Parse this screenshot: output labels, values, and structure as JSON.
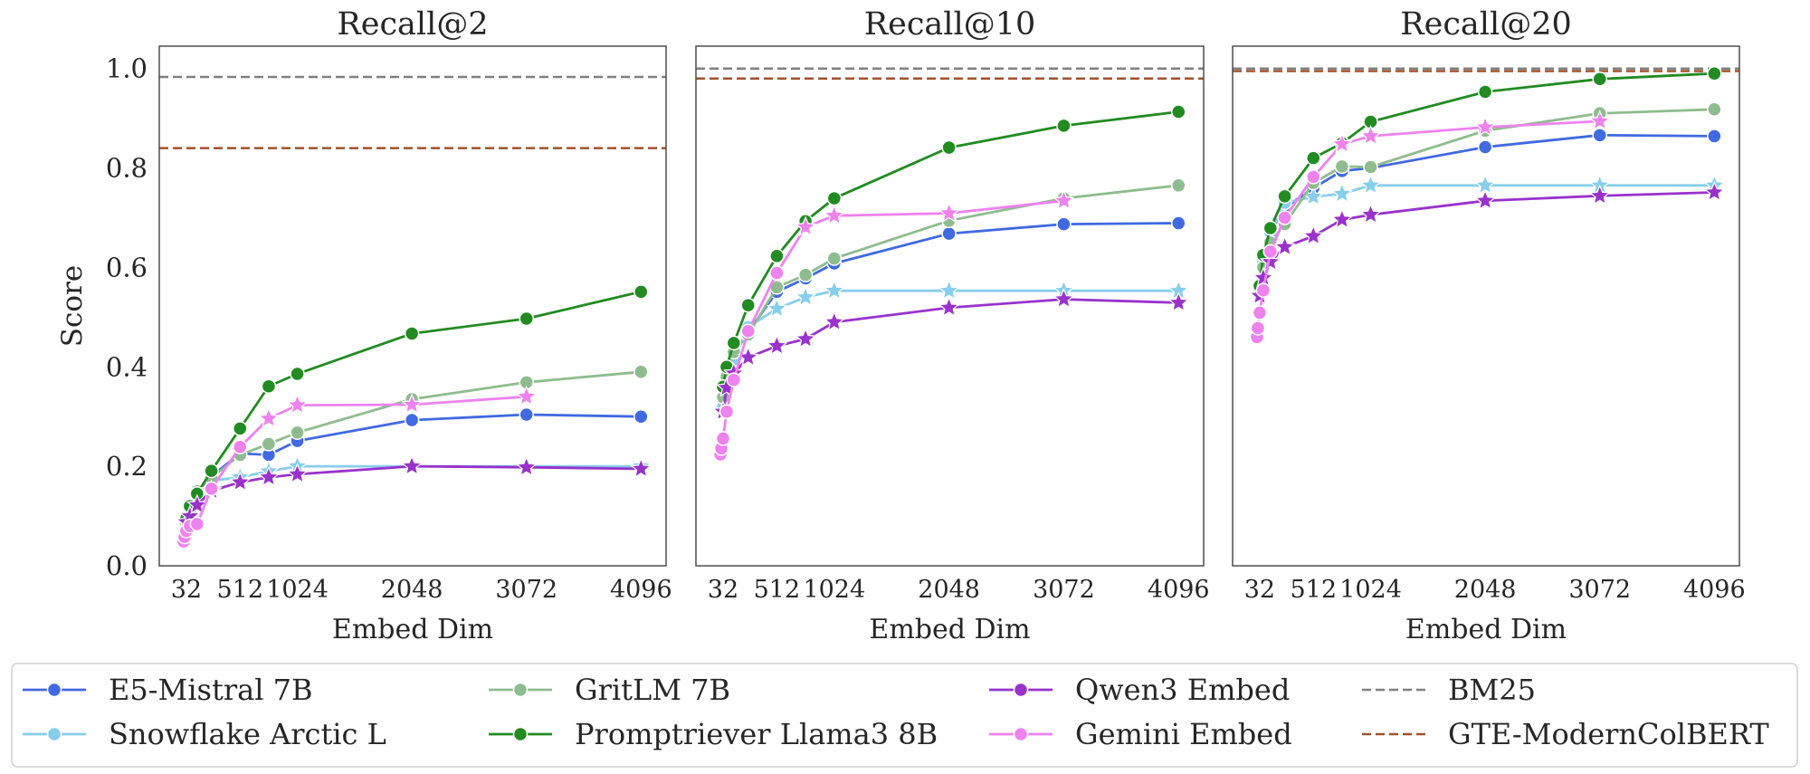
{
  "chart_data": {
    "type": "line",
    "ylabel": "Score",
    "xlabel": "Embed Dim",
    "ylim": [
      0,
      1.045
    ],
    "xlim": [
      -210,
      4320
    ],
    "xticks": [
      32,
      512,
      1024,
      2048,
      3072,
      4096
    ],
    "yticks": [
      "0.0",
      "0.2",
      "0.4",
      "0.6",
      "0.8",
      "1.0"
    ],
    "grid": false,
    "legend_position": "bottom",
    "panels": [
      {
        "title": "Recall@2"
      },
      {
        "title": "Recall@10"
      },
      {
        "title": "Recall@20"
      }
    ],
    "series": [
      {
        "name": "E5-Mistral 7B",
        "color": "#4169e1",
        "x": [
          32,
          64,
          128,
          256,
          512,
          768,
          1024,
          2048,
          3072,
          4096
        ],
        "markers": [
          "circle",
          "circle",
          "circle",
          "circle",
          "circle",
          "circle",
          "circle",
          "circle",
          "circle",
          "circle"
        ],
        "values": [
          [
            0.09,
            0.105,
            0.14,
            0.18,
            0.226,
            0.223,
            0.251,
            0.293,
            0.304,
            0.3
          ],
          [
            0.33,
            0.375,
            0.425,
            0.47,
            0.551,
            0.578,
            0.608,
            0.668,
            0.687,
            0.689
          ],
          [
            0.56,
            0.61,
            0.67,
            0.72,
            0.76,
            0.794,
            0.8,
            0.842,
            0.866,
            0.864
          ]
        ]
      },
      {
        "name": "Snowflake Arctic L",
        "color": "#87ceeb",
        "x": [
          32,
          64,
          128,
          256,
          512,
          768,
          1024,
          2048,
          3072,
          4096
        ],
        "markers": [
          "circle",
          "circle",
          "circle",
          "circle",
          "star",
          "star",
          "star",
          "star",
          "star",
          "star"
        ],
        "values": [
          [
            0.085,
            0.11,
            0.152,
            0.171,
            0.178,
            0.19,
            0.2,
            0.2,
            0.2,
            0.2
          ],
          [
            0.32,
            0.37,
            0.415,
            0.48,
            0.517,
            0.54,
            0.553,
            0.553,
            0.553,
            0.553
          ],
          [
            0.55,
            0.61,
            0.67,
            0.73,
            0.742,
            0.748,
            0.765,
            0.765,
            0.765,
            0.765
          ]
        ]
      },
      {
        "name": "GritLM 7B",
        "color": "#8fbc8f",
        "x": [
          32,
          64,
          128,
          256,
          512,
          768,
          1024,
          2048,
          3072,
          4096
        ],
        "markers": [
          "circle",
          "circle",
          "circle",
          "circle",
          "circle",
          "circle",
          "circle",
          "circle",
          "circle",
          "circle"
        ],
        "values": [
          [
            0.085,
            0.11,
            0.15,
            0.177,
            0.223,
            0.245,
            0.268,
            0.335,
            0.369,
            0.39
          ],
          [
            0.339,
            0.38,
            0.43,
            0.465,
            0.56,
            0.585,
            0.618,
            0.694,
            0.739,
            0.765
          ],
          [
            0.56,
            0.6,
            0.65,
            0.687,
            0.77,
            0.803,
            0.802,
            0.875,
            0.91,
            0.918
          ]
        ]
      },
      {
        "name": "Promptriever Llama3 8B",
        "color": "#228b22",
        "x": [
          32,
          64,
          128,
          256,
          512,
          768,
          1024,
          2048,
          3072,
          4096
        ],
        "markers": [
          "circle",
          "circle",
          "circle",
          "circle",
          "circle",
          "circle",
          "circle",
          "circle",
          "circle",
          "circle"
        ],
        "values": [
          [
            0.095,
            0.12,
            0.145,
            0.191,
            0.276,
            0.361,
            0.386,
            0.467,
            0.497,
            0.551
          ],
          [
            0.36,
            0.4,
            0.448,
            0.524,
            0.623,
            0.693,
            0.739,
            0.841,
            0.885,
            0.913
          ],
          [
            0.563,
            0.625,
            0.679,
            0.743,
            0.82,
            0.85,
            0.893,
            0.953,
            0.979,
            0.99
          ]
        ]
      },
      {
        "name": "Qwen3 Embed",
        "color": "#9932cc",
        "x": [
          32,
          64,
          128,
          256,
          512,
          768,
          1024,
          2048,
          3072,
          4096
        ],
        "markers": [
          "star",
          "star",
          "star",
          "star",
          "star",
          "star",
          "star",
          "star",
          "star",
          "star"
        ],
        "values": [
          [
            0.088,
            0.1,
            0.122,
            0.151,
            0.168,
            0.178,
            0.184,
            0.2,
            0.198,
            0.195
          ],
          [
            0.31,
            0.358,
            0.387,
            0.419,
            0.442,
            0.456,
            0.49,
            0.519,
            0.536,
            0.529
          ],
          [
            0.543,
            0.579,
            0.611,
            0.641,
            0.663,
            0.696,
            0.706,
            0.734,
            0.744,
            0.751
          ]
        ]
      },
      {
        "name": "Gemini Embed",
        "color": "#ee82ee",
        "x": [
          8,
          16,
          32,
          64,
          128,
          256,
          512,
          768,
          1024,
          2048,
          3072
        ],
        "markers": [
          "circle",
          "circle",
          "circle",
          "circle",
          "circle",
          "circle",
          "circle",
          "star",
          "star",
          "star",
          "star"
        ],
        "values": [
          [
            0.049,
            0.058,
            0.07,
            0.08,
            0.084,
            0.155,
            0.239,
            0.296,
            0.323,
            0.324,
            0.34
          ],
          [
            0.224,
            0.236,
            0.256,
            0.31,
            0.374,
            0.472,
            0.589,
            0.681,
            0.704,
            0.709,
            0.734
          ],
          [
            0.46,
            0.478,
            0.509,
            0.554,
            0.632,
            0.7,
            0.782,
            0.848,
            0.864,
            0.882,
            0.894
          ]
        ]
      }
    ],
    "baselines": [
      {
        "name": "BM25",
        "color": "#808080",
        "values": [
          0.983,
          1.0,
          1.0
        ]
      },
      {
        "name": "GTE-ModernColBERT",
        "color": "#a0522d",
        "values": [
          0.84,
          0.98,
          0.995
        ]
      }
    ]
  }
}
